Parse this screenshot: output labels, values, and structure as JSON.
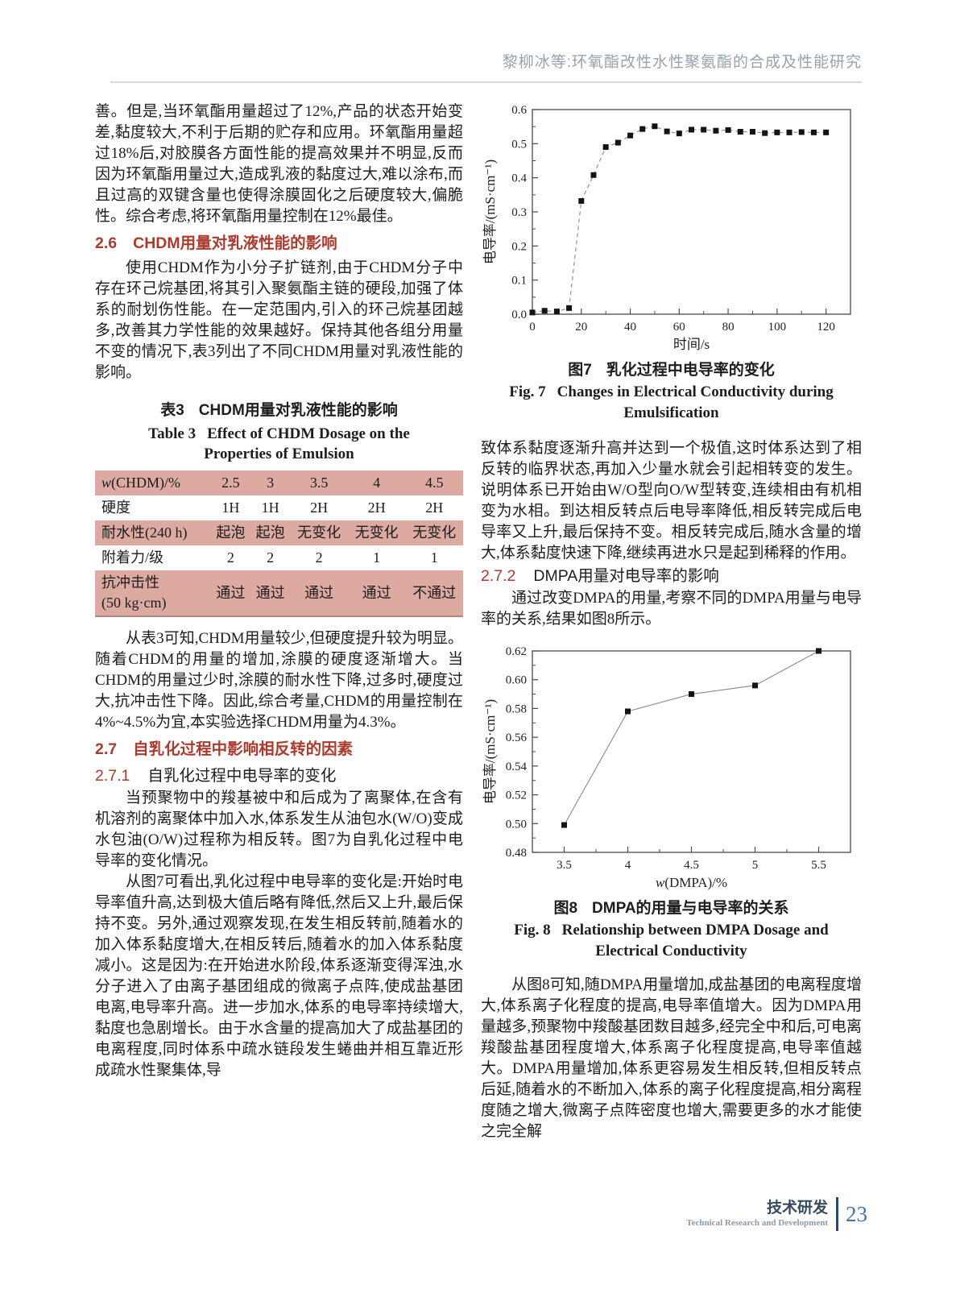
{
  "header": {
    "running_title": "黎柳冰等:环氧酯改性水性聚氨酯的合成及性能研究"
  },
  "footer": {
    "section_zh": "技术研发",
    "section_en": "Technical Research and Development",
    "page_number": "23"
  },
  "colors": {
    "accent_red": "#a93b2f",
    "table_pink": "#dcaaa1",
    "header_gray": "#96a3ae",
    "footer_navy": "#3a4a5e",
    "footer_blue": "#4a73a0"
  },
  "left_column": {
    "p1": "善。但是,当环氧酯用量超过了12%,产品的状态开始变差,黏度较大,不利于后期的贮存和应用。环氧酯用量超过18%后,对胶膜各方面性能的提高效果并不明显,反而因为环氧酯用量过大,造成乳液的黏度过大,难以涂布,而且过高的双键含量也使得涂膜固化之后硬度较大,偏脆性。综合考虑,将环氧酯用量控制在12%最佳。",
    "s26": {
      "num": "2.6",
      "title": "CHDM用量对乳液性能的影响"
    },
    "p26": "使用CHDM作为小分子扩链剂,由于CHDM分子中存在环己烷基团,将其引入聚氨酯主链的硬段,加强了体系的耐划伤性能。在一定范围内,引入的环己烷基团越多,改善其力学性能的效果越好。保持其他各组分用量不变的情况下,表3列出了不同CHDM用量对乳液性能的影响。",
    "table3": {
      "cap_zh_prefix": "表3",
      "cap_zh_title": "CHDM用量对乳液性能的影响",
      "cap_en_prefix": "Table 3",
      "cap_en_title": "Effect of CHDM Dosage on the Properties of Emulsion",
      "rows": [
        {
          "it": "w",
          "text": "(CHDM)/%",
          "text2": "",
          "values": [
            "2.5",
            "3",
            "3.5",
            "4",
            "4.5"
          ]
        },
        {
          "it": "",
          "text": "硬度",
          "text2": "",
          "values": [
            "1H",
            "1H",
            "2H",
            "2H",
            "2H"
          ]
        },
        {
          "it": "",
          "text": "耐水性(240 h)",
          "text2": "",
          "values": [
            "起泡",
            "起泡",
            "无变化",
            "无变化",
            "无变化"
          ]
        },
        {
          "it": "",
          "text": "附着力/级",
          "text2": "",
          "values": [
            "2",
            "2",
            "2",
            "1",
            "1"
          ]
        },
        {
          "it": "",
          "text": "抗冲击性",
          "text2": "(50 kg·cm)",
          "values": [
            "通过",
            "通过",
            "通过",
            "通过",
            "不通过"
          ]
        }
      ]
    },
    "p3": "从表3可知,CHDM用量较少,但硬度提升较为明显。随着CHDM的用量的增加,涂膜的硬度逐渐增大。当CHDM的用量过少时,涂膜的耐水性下降,过多时,硬度过大,抗冲击性下降。因此,综合考量,CHDM的用量控制在4%~4.5%为宜,本实验选择CHDM用量为4.3%。",
    "s27": {
      "num": "2.7",
      "title": "自乳化过程中影响相反转的因素"
    },
    "s271": {
      "num": "2.7.1",
      "title": "自乳化过程中电导率的变化"
    },
    "p4": "当预聚物中的羧基被中和后成为了离聚体,在含有机溶剂的离聚体中加入水,体系发生从油包水(W/O)变成水包油(O/W)过程称为相反转。图7为自乳化过程中电导率的变化情况。",
    "p5": "从图7可看出,乳化过程中电导率的变化是:开始时电导率值升高,达到极大值后略有降低,然后又上升,最后保持不变。另外,通过观察发现,在发生相反转前,随着水的加入体系黏度增大,在相反转后,随着水的加入体系黏度减小。这是因为:在开始进水阶段,体系逐渐变得浑浊,水分子进入了由离子基团组成的微离子点阵,使成盐基团电离,电导率升高。进一步加水,体系的电导率持续增大,黏度也急剧增长。由于水含量的提高加大了成盐基团的电离程度,同时体系中疏水链段发生蜷曲并相互靠近形成疏水性聚集体,导"
  },
  "right_column": {
    "fig7_cap": {
      "zh_prefix": "图7",
      "zh_title": "乳化过程中电导率的变化",
      "en_prefix": "Fig. 7",
      "en_title": "Changes in Electrical Conductivity during Emulsification"
    },
    "p6": "致体系黏度逐渐升高并达到一个极值,这时体系达到了相反转的临界状态,再加入少量水就会引起相转变的发生。说明体系已开始由W/O型向O/W型转变,连续相由有机相变为水相。到达相反转点后电导率降低,相反转完成后电导率又上升,最后保持不变。相反转完成后,随水含量的增大,体系黏度快速下降,继续再进水只是起到稀释的作用。",
    "s272": {
      "num": "2.7.2",
      "title": "DMPA用量对电导率的影响"
    },
    "p7": "通过改变DMPA的用量,考察不同的DMPA用量与电导率的关系,结果如图8所示。",
    "fig8_cap": {
      "zh_prefix": "图8",
      "zh_title": "DMPA的用量与电导率的关系",
      "en_prefix": "Fig. 8",
      "en_title": "Relationship between DMPA Dosage and Electrical Conductivity"
    },
    "p8": "从图8可知,随DMPA用量增加,成盐基团的电离程度增大,体系离子化程度的提高,电导率值增大。因为DMPA用量越多,预聚物中羧酸基团数目越多,经完全中和后,可电离羧酸盐基团程度增大,体系离子化程度提高,电导率值越大。DMPA用量增加,体系更容易发生相反转,但相反转点后延,随着水的不断加入,体系的离子化程度提高,相分离程度随之增大,微离子点阵密度也增大,需要更多的水才能使之完全解"
  },
  "chart_data": [
    {
      "id": "fig7-chart",
      "type": "line",
      "title": "图7 乳化过程中电导率的变化 (Fig. 7 Changes in Electrical Conductivity during Emulsification)",
      "xlabel": "时间/s",
      "xlabel_italic_first": false,
      "ylabel": "电导率/(mS·cm⁻¹)",
      "xlim": [
        0,
        130
      ],
      "ylim": [
        0,
        0.6
      ],
      "xticks": [
        0,
        20,
        40,
        60,
        80,
        100,
        120
      ],
      "xtick_labels": [
        "0",
        "20",
        "40",
        "60",
        "80",
        "100",
        "120"
      ],
      "x_minor_step": 10,
      "yticks": [
        0,
        0.1,
        0.2,
        0.3,
        0.4,
        0.5,
        0.6
      ],
      "ytick_labels": [
        "0.0",
        "0.1",
        "0.2",
        "0.3",
        "0.4",
        "0.5",
        "0.6"
      ],
      "y_minor_step": 0.05,
      "line_style": "dashed",
      "marker": "square",
      "x": [
        0,
        5,
        10,
        15,
        20,
        25,
        30,
        35,
        40,
        45,
        50,
        55,
        60,
        65,
        70,
        75,
        80,
        85,
        90,
        95,
        100,
        105,
        110,
        115,
        120
      ],
      "y": [
        0.005,
        0.01,
        0.008,
        0.018,
        0.332,
        0.408,
        0.49,
        0.503,
        0.524,
        0.543,
        0.551,
        0.536,
        0.53,
        0.541,
        0.541,
        0.538,
        0.54,
        0.535,
        0.535,
        0.531,
        0.533,
        0.533,
        0.534,
        0.533,
        0.533
      ],
      "grid": false,
      "legend": "none"
    },
    {
      "id": "fig8-chart",
      "type": "line",
      "title": "图8 DMPA的用量与电导率的关系 (Fig. 8 Relationship between DMPA Dosage and Electrical Conductivity)",
      "xlabel": "w(DMPA)/%",
      "xlabel_italic_first": true,
      "ylabel": "电导率/(mS·cm⁻¹)",
      "xlim": [
        3.25,
        5.75
      ],
      "ylim": [
        0.48,
        0.62
      ],
      "xticks": [
        3.5,
        4,
        4.5,
        5,
        5.5
      ],
      "xtick_labels": [
        "3.5",
        "4",
        "4.5",
        "5",
        "5.5"
      ],
      "x_minor_step": 0.25,
      "yticks": [
        0.48,
        0.5,
        0.52,
        0.54,
        0.56,
        0.58,
        0.6,
        0.62
      ],
      "ytick_labels": [
        "0.48",
        "0.50",
        "0.52",
        "0.54",
        "0.56",
        "0.58",
        "0.60",
        "0.62"
      ],
      "y_minor_step": 0.01,
      "line_style": "solid",
      "marker": "square",
      "x": [
        3.5,
        4,
        4.5,
        5,
        5.5
      ],
      "y": [
        0.499,
        0.578,
        0.59,
        0.596,
        0.62
      ],
      "grid": false,
      "legend": "none"
    }
  ]
}
